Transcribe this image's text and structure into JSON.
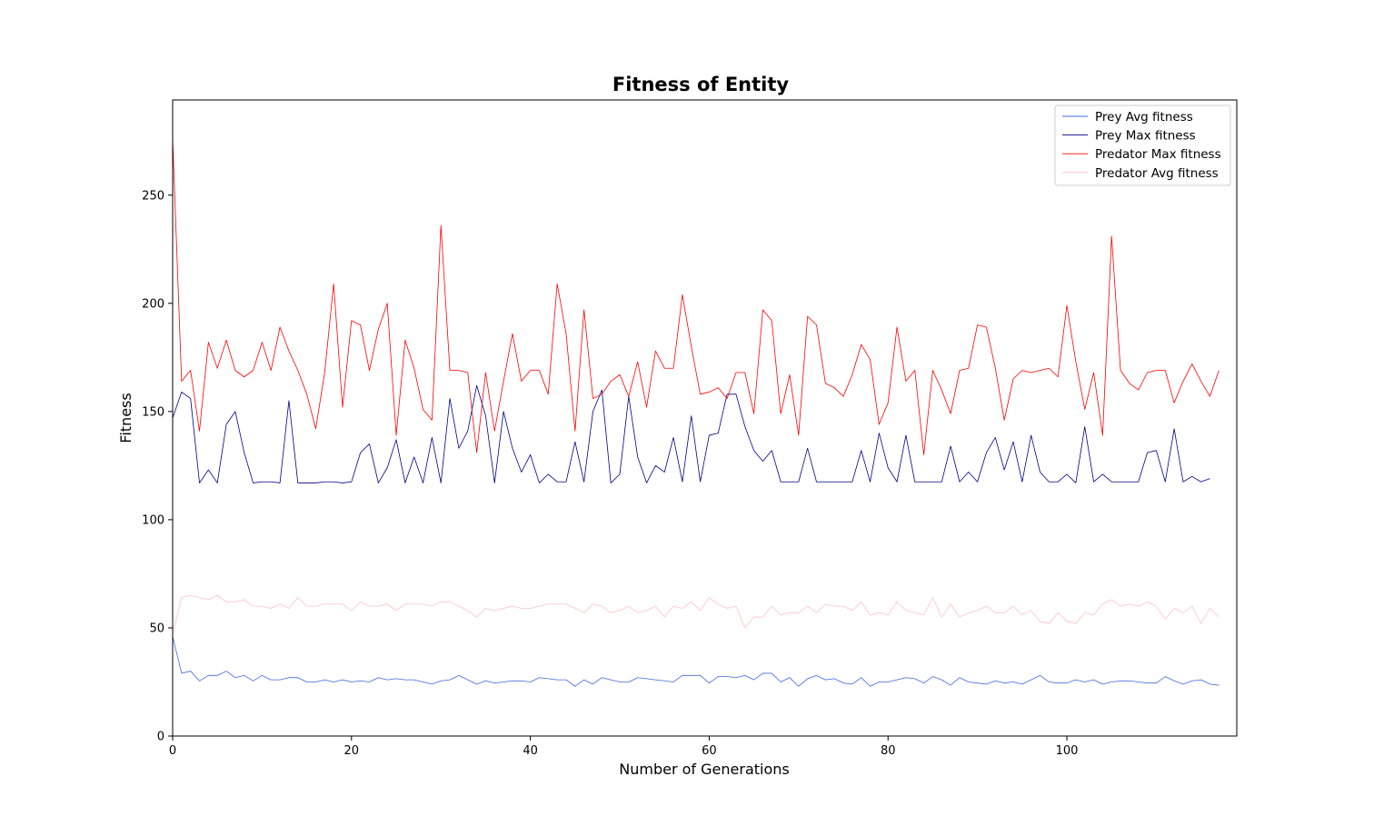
{
  "chart_data": {
    "type": "line",
    "title": "Fitness of Entity",
    "xlabel": "Number of Generations",
    "ylabel": "Fitness",
    "xlim": [
      0,
      119
    ],
    "ylim": [
      0,
      294
    ],
    "xticks": [
      0,
      20,
      40,
      60,
      80,
      100
    ],
    "yticks": [
      0,
      50,
      100,
      150,
      200,
      250
    ],
    "grid": false,
    "legend_position": "top-right",
    "series": [
      {
        "name": "Prey Avg fitness",
        "color": "#4169e1",
        "values": [
          46,
          29,
          30,
          25.5,
          28,
          28,
          30,
          27,
          28,
          25.5,
          28,
          26,
          26,
          27,
          27,
          25,
          25,
          26,
          25,
          26,
          25,
          25.5,
          25,
          27,
          26,
          26.5,
          26,
          26,
          25,
          24,
          25.5,
          26,
          28,
          26,
          24,
          25.5,
          24.5,
          25,
          25.5,
          25.5,
          25,
          27,
          26.5,
          26,
          26,
          23,
          26,
          24,
          27,
          26,
          25,
          25,
          27,
          26.5,
          26,
          25.5,
          25,
          28,
          28,
          28,
          24.5,
          27.5,
          27.5,
          27,
          28,
          26,
          29,
          29,
          25,
          27,
          23,
          26.5,
          28,
          26,
          26.5,
          24.5,
          24,
          27,
          23,
          25,
          25,
          26,
          27,
          26.5,
          24.5,
          27.5,
          26,
          23.5,
          27,
          25,
          24.5,
          24,
          25.5,
          24.5,
          25,
          24,
          26,
          28,
          25,
          24.5,
          24.5,
          26,
          25,
          26,
          24,
          25,
          25.5,
          25.5,
          25,
          24.5,
          24.5,
          27.5,
          25.5,
          24,
          25.5,
          26,
          24,
          23.5
        ]
      },
      {
        "name": "Prey Max fitness",
        "color": "#00008b",
        "values": [
          147,
          159,
          156,
          117,
          123,
          117,
          144,
          150,
          131,
          117,
          117.5,
          117.5,
          117,
          155,
          117,
          117,
          117,
          117.5,
          117.5,
          117,
          117.5,
          131,
          135,
          117,
          124,
          137,
          117,
          129,
          117,
          138,
          117,
          156,
          133,
          141,
          162,
          148,
          117,
          150,
          133,
          122,
          130,
          117,
          121,
          117.5,
          117.5,
          136,
          117.5,
          150,
          160,
          117,
          121,
          157,
          129,
          117,
          125,
          122,
          138,
          117.5,
          148,
          117.5,
          139,
          140,
          158,
          158,
          143,
          132,
          127,
          132,
          117.5,
          117.5,
          117.5,
          133,
          117.5,
          117.5,
          117.5,
          117.5,
          117.5,
          132,
          117.5,
          140,
          124,
          117.5,
          139,
          117.5,
          117.5,
          117.5,
          117.5,
          134,
          117.5,
          122,
          117.5,
          131,
          138,
          123,
          136,
          117.5,
          139,
          122,
          117.5,
          117.5,
          121,
          117,
          143,
          117.5,
          121,
          117.5,
          117.5,
          117.5,
          117.5,
          131,
          132,
          117.5,
          142,
          117.5,
          120,
          117.5,
          119
        ]
      },
      {
        "name": "Predator Max fitness",
        "color": "#ff0000",
        "values": [
          276,
          164,
          169,
          141,
          182,
          170,
          183,
          169,
          166,
          169,
          182,
          169,
          189,
          178,
          169,
          158,
          142,
          168,
          209,
          152,
          192,
          190,
          169,
          188,
          200,
          139,
          183,
          170,
          151,
          146,
          236,
          169,
          169,
          168,
          131,
          168,
          141,
          164,
          186,
          164,
          169,
          169,
          158,
          209,
          186,
          141,
          197,
          156,
          158,
          164,
          167,
          157,
          173,
          152,
          178,
          170,
          170,
          204,
          180,
          158,
          159,
          161,
          156,
          168,
          168,
          149,
          197,
          192,
          149,
          167,
          139,
          194,
          190,
          163,
          161,
          157,
          167,
          181,
          174,
          144,
          154,
          189,
          164,
          169,
          130,
          169,
          160,
          149,
          169,
          170,
          190,
          189,
          170,
          146,
          165,
          169,
          168,
          169,
          170,
          166,
          199,
          173,
          151,
          168,
          139,
          231,
          169,
          163,
          160,
          168,
          169,
          169,
          154,
          164,
          172,
          164,
          157,
          169
        ]
      },
      {
        "name": "Predator Avg fitness",
        "color": "#ffc0cb",
        "values": [
          47,
          64,
          65,
          64,
          63,
          65,
          62,
          62,
          63,
          60,
          60,
          59,
          61,
          59,
          64,
          60,
          60,
          61,
          61,
          61,
          58,
          62,
          60,
          60,
          61,
          58,
          61,
          61,
          61,
          60,
          62,
          62,
          60,
          58,
          55,
          59,
          58,
          59,
          60,
          59,
          59,
          60,
          61,
          61,
          61,
          59,
          57,
          61,
          60,
          57,
          58,
          60,
          57,
          58,
          60,
          55,
          60,
          59,
          62,
          58,
          64,
          61,
          59,
          60,
          50,
          55,
          55,
          60,
          56,
          57,
          57,
          60,
          57,
          61,
          60,
          60,
          58,
          62,
          56,
          57,
          56,
          62,
          58,
          57,
          56,
          64,
          55,
          61,
          55,
          57,
          58,
          60,
          57,
          57,
          60,
          56,
          58,
          53,
          52,
          57,
          53,
          52,
          57,
          56,
          61,
          63,
          60,
          61,
          60,
          62,
          60,
          54,
          59,
          57,
          60,
          52,
          59,
          55
        ]
      }
    ]
  }
}
